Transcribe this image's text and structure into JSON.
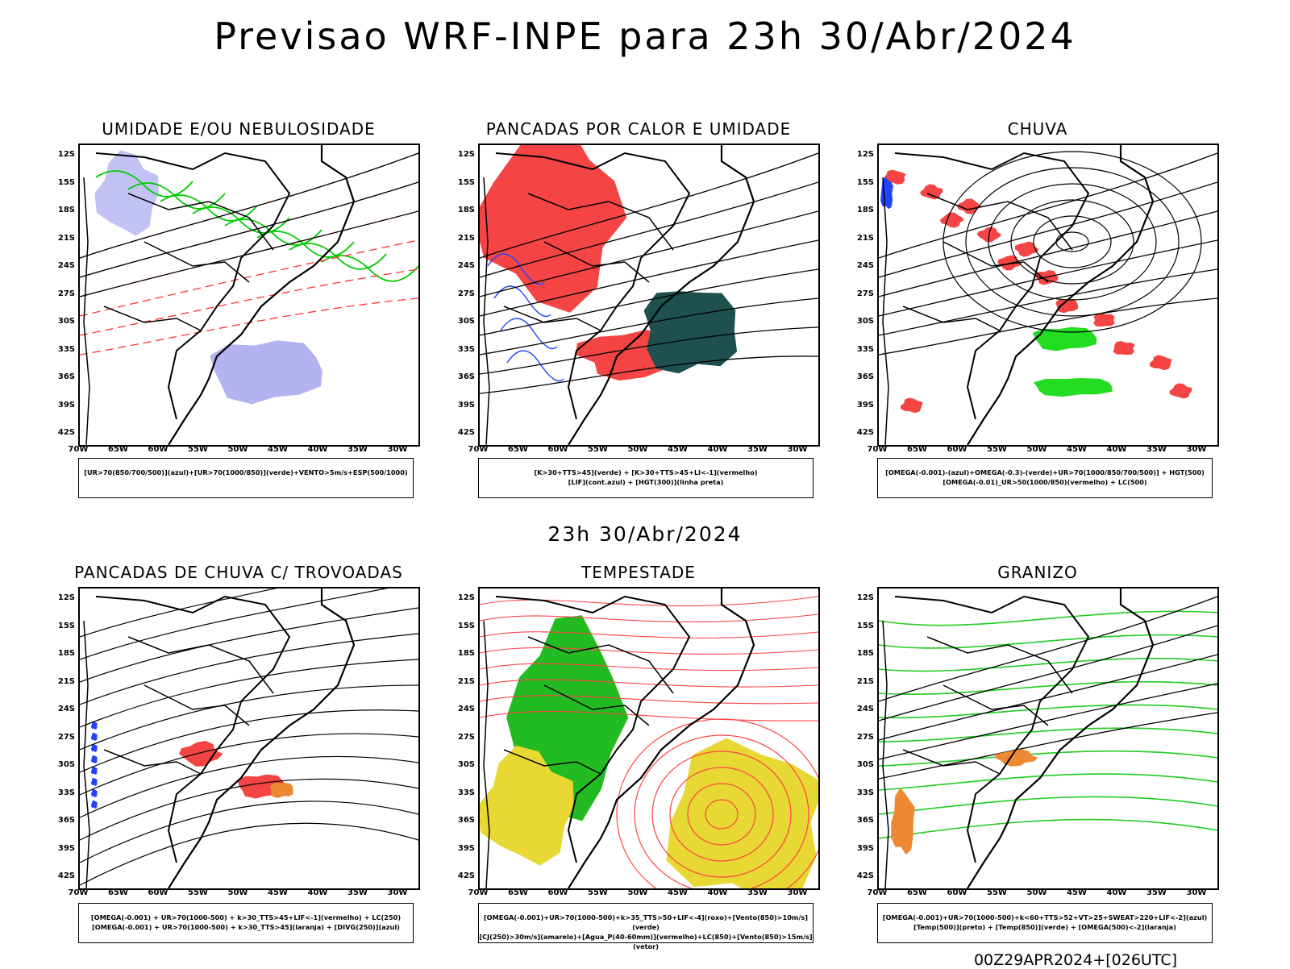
{
  "title": "Previsao WRF-INPE  para 23h 30/Abr/2024",
  "subtitle": "23h 30/Abr/2024",
  "footer": "00Z29APR2024+[026UTC]",
  "axes": {
    "lat_labels": [
      "12S",
      "15S",
      "18S",
      "21S",
      "24S",
      "27S",
      "30S",
      "33S",
      "36S",
      "39S",
      "42S"
    ],
    "lon_labels": [
      "70W",
      "65W",
      "60W",
      "55W",
      "50W",
      "45W",
      "40W",
      "35W",
      "30W"
    ]
  },
  "panels": [
    {
      "title": "UMIDADE E/OU NEBULOSIDADE",
      "legend": [
        "[UR>70(850/700/500)](azul)+[UR>70(1000/850)](verde)+VENTO>5m/s+ESP(500/1000)"
      ],
      "colors": {
        "fill1": "#9999ee",
        "line1": "#00cc00",
        "line2": "#ff3333"
      }
    },
    {
      "title": "PANCADAS POR CALOR E UMIDADE",
      "legend": [
        "[K>30+TTS>45](verde) + [K>30+TTS>45+LI<-1](vermelho)",
        "[LIF](cont.azul) + [HGT(300)](linha preta)"
      ],
      "colors": {
        "fill1": "#f44444",
        "fill2": "#1f5050",
        "line1": "#2244ff"
      }
    },
    {
      "title": "CHUVA",
      "legend": [
        "[OMEGA(-0.001)-(azul)+OMEGA(-0.3)-(verde)+UR>70(1000/850/700/500)] + HGT(500)",
        "[OMEGA(-0.01)_UR>50(1000/850)(vermelho) + LC(500)"
      ],
      "colors": {
        "fill1": "#f44444",
        "fill2": "#22dd22",
        "fill3": "#2244ff"
      }
    },
    {
      "title": "PANCADAS DE CHUVA C/ TROVOADAS",
      "legend": [
        "[OMEGA(-0.001) + UR>70(1000-500) + k>30_TTS>45+LIF<-1](vermelho) + LC(250)",
        "[OMEGA(-0.001) + UR>70(1000-500) + k>30_TTS>45](laranja) + [DIVG(250)](azul)"
      ],
      "colors": {
        "fill1": "#f44444",
        "fill2": "#ee8833",
        "fill3": "#2244ff"
      }
    },
    {
      "title": "TEMPESTADE",
      "legend": [
        "[OMEGA(-0.001)+UR>70(1000-500)+k>35_TTS>50+LIF<-4](roxo)+[Vento(850)>10m/s](verde)",
        "[CJ(250)>30m/s](amarelo)+[Agua_P(40-60mm)](vermelho)+LC(850)+[Vento(850)>15m/s](vetor)"
      ],
      "colors": {
        "fill1": "#22bb22",
        "fill2": "#e8d833",
        "line1": "#ff4444"
      }
    },
    {
      "title": "GRANIZO",
      "legend": [
        "[OMEGA(-0.001)+UR>70(1000-500)+k<60+TTS>52+VT>25+SWEAT>220+LIF<-2](azul)",
        "[Temp(500)](preto) + [Temp(850)](verde) + [OMEGA(500)<-2](laranja)"
      ],
      "colors": {
        "fill1": "#ee8833",
        "line1": "#22cc22"
      }
    }
  ]
}
